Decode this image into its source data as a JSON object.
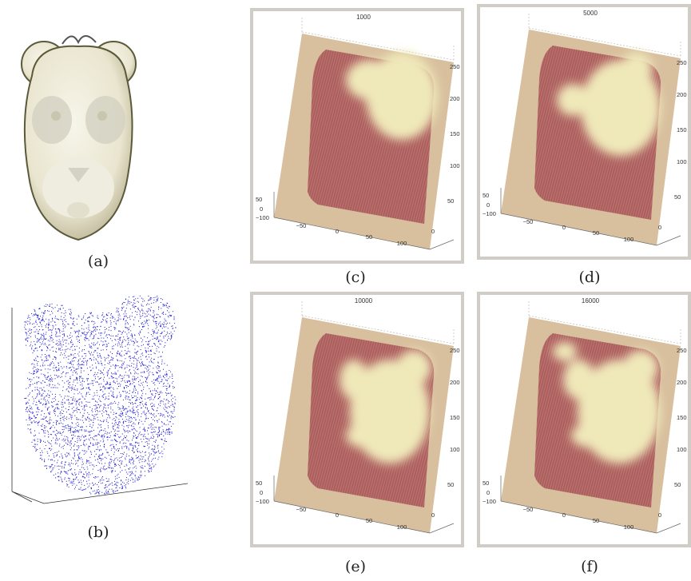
{
  "figure": {
    "left": [
      {
        "label": "(a)"
      },
      {
        "label": "(b)"
      }
    ],
    "panels": [
      {
        "label": "(c)",
        "title": "1000",
        "ticks": [
          "50",
          "0",
          "−100",
          "−50",
          "0",
          "50",
          "100",
          "0",
          "250",
          "200",
          "150",
          "100",
          "50"
        ]
      },
      {
        "label": "(d)",
        "title": "5000",
        "ticks": [
          "50",
          "0",
          "−100",
          "−50",
          "0",
          "50",
          "100",
          "0",
          "250",
          "200",
          "150",
          "100",
          "50"
        ]
      },
      {
        "label": "(e)",
        "title": "10000",
        "ticks": [
          "50",
          "0",
          "−100",
          "−50",
          "0",
          "50",
          "100",
          "0",
          "250",
          "200",
          "150",
          "100",
          "50"
        ]
      },
      {
        "label": "(f)",
        "title": "16000",
        "ticks": [
          "50",
          "0",
          "−100",
          "−50",
          "0",
          "50",
          "100",
          "0",
          "250",
          "200",
          "150",
          "100",
          "50"
        ]
      }
    ]
  }
}
